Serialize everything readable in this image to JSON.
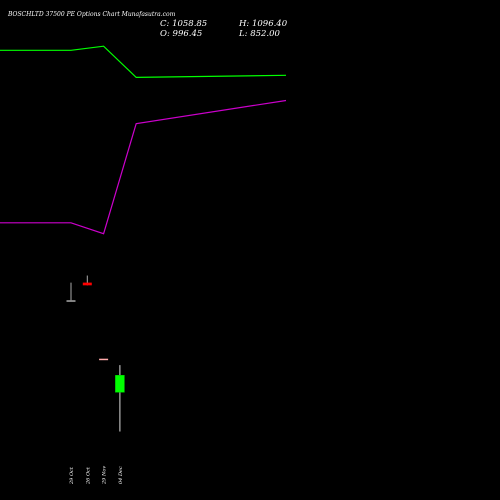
{
  "header": {
    "title": "BOSCHLTD 37500 PE Options Chart Munafasutra.com",
    "close_label": "C: 1058.85",
    "high_label": "H: 1096.40",
    "open_label": "O: 996.45",
    "low_label": "L: 852.00"
  },
  "chart_data": {
    "type": "candlestick",
    "background": "#000000",
    "x_tick_labels": [
      "29 Oct",
      "26 Oct",
      "29 Nov",
      "04 Dec"
    ],
    "candles": [
      {
        "x_index": 0,
        "open": 1335,
        "high": 1400,
        "low": 1335,
        "close": 1335,
        "color": "#aaaaaa"
      },
      {
        "x_index": 1,
        "open": 1400,
        "high": 1426,
        "low": 1390,
        "close": 1390,
        "color": "#ff0000"
      },
      {
        "x_index": 2,
        "open": 1120,
        "high": 1120,
        "low": 1120,
        "close": 1120,
        "color": "#ffaaaa"
      },
      {
        "x_index": 3,
        "open": 996.45,
        "high": 1096.4,
        "low": 852.0,
        "close": 1058.85,
        "color": "#00ff00"
      }
    ],
    "overlay_lines": [
      {
        "color": "#00ff00",
        "points": [
          [
            -1,
            2255
          ],
          [
            0,
            2255
          ],
          [
            2,
            2270
          ],
          [
            4,
            2155
          ],
          [
            6,
            2163
          ]
        ]
      },
      {
        "color": "#cc00cc",
        "points": [
          [
            -1,
            1620
          ],
          [
            0,
            1620
          ],
          [
            2,
            1580
          ],
          [
            4,
            1985
          ],
          [
            6,
            2070
          ]
        ]
      }
    ],
    "y_range": [
      600,
      2440
    ]
  }
}
